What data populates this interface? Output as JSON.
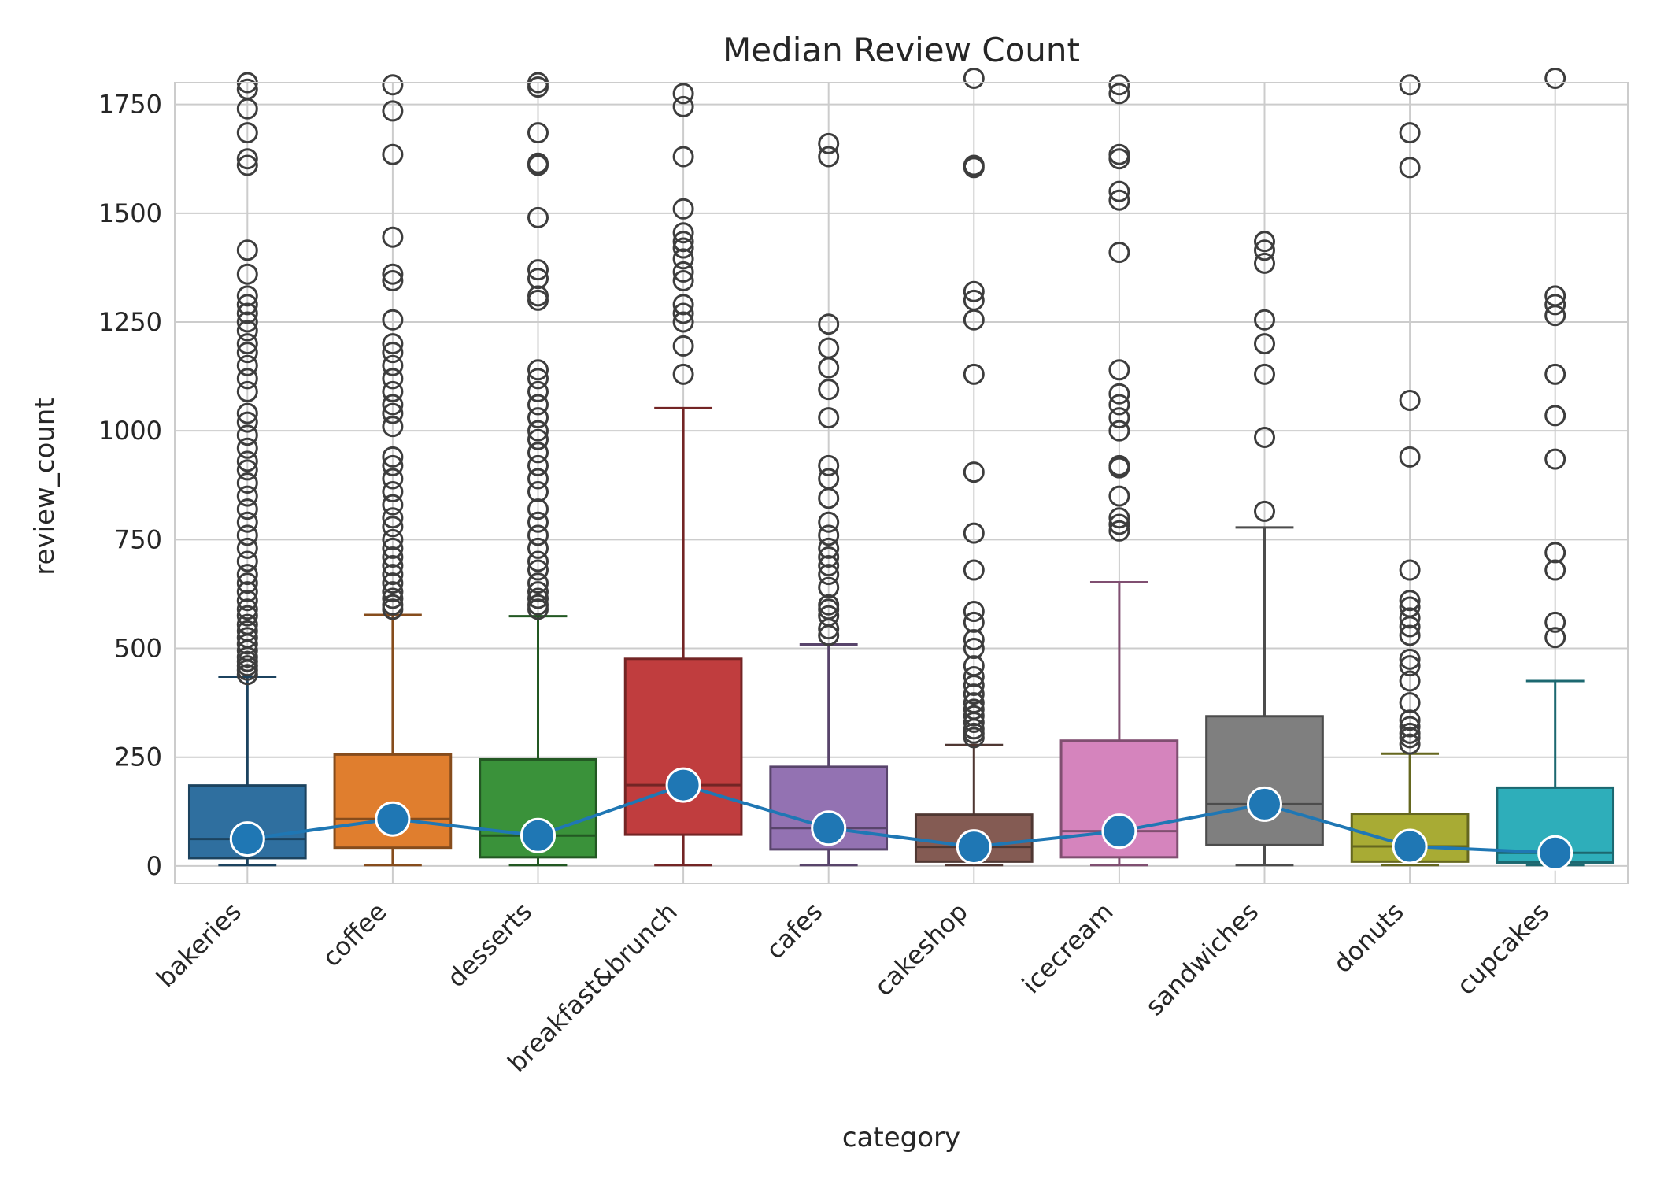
{
  "chart_data": {
    "type": "box",
    "title": "Median Review Count",
    "xlabel": "category",
    "ylabel": "review_count",
    "ylim": [
      -40,
      1800
    ],
    "yticks": [
      0,
      250,
      500,
      750,
      1000,
      1250,
      1500,
      1750
    ],
    "grid": true,
    "legend": "none",
    "categories": [
      "bakeries",
      "coffee",
      "desserts",
      "breakfast&brunch",
      "cafes",
      "cakeshop",
      "icecream",
      "sandwiches",
      "donuts",
      "cupcakes"
    ],
    "boxes": [
      {
        "category": "bakeries",
        "color": "#2f6f9f",
        "min": 2,
        "q1": 18,
        "median": 62,
        "q3": 185,
        "whisker_high": 435,
        "outliers": [
          440,
          450,
          460,
          470,
          480,
          495,
          510,
          525,
          540,
          555,
          575,
          590,
          610,
          630,
          650,
          670,
          700,
          730,
          760,
          790,
          820,
          850,
          880,
          910,
          930,
          960,
          990,
          1020,
          1040,
          1090,
          1120,
          1150,
          1180,
          1200,
          1230,
          1250,
          1270,
          1290,
          1310,
          1360,
          1415,
          1610,
          1625,
          1685,
          1740,
          1785,
          1800
        ]
      },
      {
        "category": "coffee",
        "color": "#e07e2e",
        "min": 2,
        "q1": 42,
        "median": 108,
        "q3": 256,
        "whisker_high": 577,
        "outliers": [
          590,
          600,
          615,
          630,
          650,
          670,
          690,
          710,
          730,
          750,
          780,
          800,
          830,
          860,
          890,
          920,
          940,
          1010,
          1040,
          1060,
          1090,
          1120,
          1150,
          1180,
          1200,
          1255,
          1345,
          1360,
          1445,
          1635,
          1735,
          1795
        ]
      },
      {
        "category": "desserts",
        "color": "#3a923a",
        "min": 2,
        "q1": 20,
        "median": 70,
        "q3": 245,
        "whisker_high": 574,
        "outliers": [
          590,
          600,
          615,
          630,
          650,
          680,
          700,
          730,
          760,
          790,
          820,
          860,
          890,
          920,
          950,
          980,
          1000,
          1030,
          1060,
          1090,
          1120,
          1140,
          1300,
          1310,
          1350,
          1370,
          1490,
          1610,
          1615,
          1685,
          1790,
          1800
        ]
      },
      {
        "category": "breakfast&brunch",
        "color": "#c03d3e",
        "min": 2,
        "q1": 72,
        "median": 186,
        "q3": 476,
        "whisker_high": 1052,
        "outliers": [
          1130,
          1195,
          1250,
          1270,
          1290,
          1345,
          1365,
          1395,
          1420,
          1435,
          1455,
          1510,
          1630,
          1745,
          1775
        ]
      },
      {
        "category": "cafes",
        "color": "#9372b2",
        "min": 2,
        "q1": 38,
        "median": 87,
        "q3": 228,
        "whisker_high": 509,
        "outliers": [
          530,
          545,
          575,
          590,
          600,
          640,
          670,
          690,
          710,
          730,
          760,
          790,
          845,
          890,
          920,
          1030,
          1095,
          1145,
          1190,
          1245,
          1630,
          1660
        ]
      },
      {
        "category": "cakeshop",
        "color": "#845b53",
        "min": 2,
        "q1": 10,
        "median": 44,
        "q3": 118,
        "whisker_high": 278,
        "outliers": [
          295,
          305,
          315,
          330,
          345,
          360,
          375,
          395,
          415,
          435,
          460,
          500,
          520,
          560,
          585,
          680,
          765,
          905,
          1130,
          1255,
          1300,
          1320,
          1605,
          1610,
          1810
        ]
      },
      {
        "category": "icecream",
        "color": "#d584bd",
        "min": 2,
        "q1": 20,
        "median": 80,
        "q3": 288,
        "whisker_high": 652,
        "outliers": [
          770,
          785,
          800,
          850,
          915,
          920,
          1000,
          1030,
          1060,
          1085,
          1140,
          1410,
          1530,
          1550,
          1625,
          1635,
          1775,
          1795
        ]
      },
      {
        "category": "sandwiches",
        "color": "#7f7f7f",
        "min": 2,
        "q1": 48,
        "median": 142,
        "q3": 344,
        "whisker_high": 778,
        "outliers": [
          815,
          985,
          1130,
          1200,
          1255,
          1385,
          1415,
          1435
        ]
      },
      {
        "category": "donuts",
        "color": "#a8ab34",
        "min": 2,
        "q1": 10,
        "median": 45,
        "q3": 120,
        "whisker_high": 258,
        "outliers": [
          280,
          295,
          305,
          320,
          335,
          375,
          425,
          460,
          475,
          530,
          550,
          570,
          595,
          610,
          680,
          940,
          1070,
          1605,
          1685,
          1795
        ]
      },
      {
        "category": "cupcakes",
        "color": "#2eaeba",
        "min": 2,
        "q1": 8,
        "median": 30,
        "q3": 180,
        "whisker_high": 425,
        "outliers": [
          525,
          560,
          680,
          720,
          935,
          1035,
          1130,
          1265,
          1290,
          1310,
          1810
        ]
      }
    ],
    "median_line": {
      "color": "#1f77b4",
      "values": [
        62,
        108,
        70,
        186,
        87,
        44,
        80,
        142,
        45,
        30
      ]
    }
  }
}
